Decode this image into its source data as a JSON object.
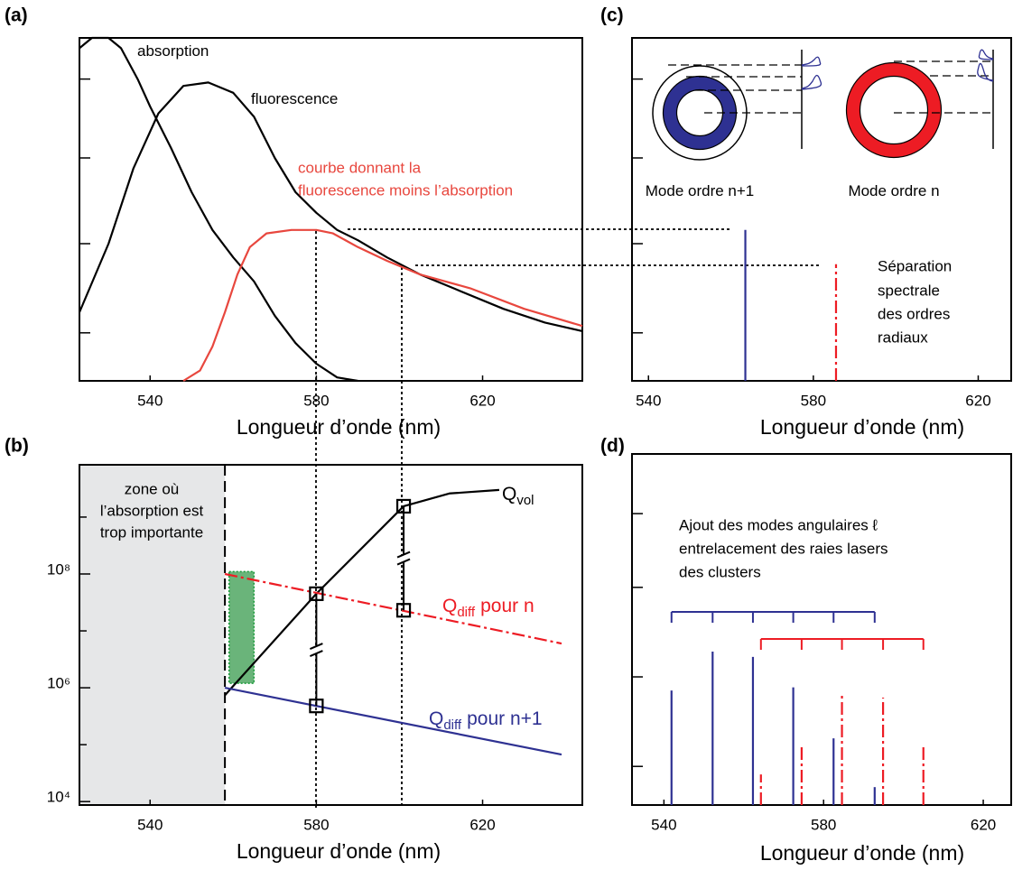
{
  "chart_data": [
    {
      "panel": "(a)",
      "type": "line",
      "xlabel": "Longueur d’onde (nm)",
      "xlim": [
        523,
        644
      ],
      "ylim": [
        0,
        1
      ],
      "xticks": [
        540,
        580,
        620
      ],
      "yticks": [
        0.14,
        0.4,
        0.65,
        0.88
      ],
      "ytick_labels": false,
      "series": [
        {
          "name": "absorption",
          "color": "#000000",
          "x": [
            523,
            526,
            530,
            533,
            537,
            540,
            545,
            550,
            555,
            560,
            565,
            570,
            575,
            580,
            585,
            590
          ],
          "values": [
            0.97,
            1.0,
            1.0,
            0.97,
            0.88,
            0.8,
            0.68,
            0.55,
            0.44,
            0.36,
            0.29,
            0.19,
            0.11,
            0.05,
            0.01,
            0
          ]
        },
        {
          "name": "fluorescence",
          "color": "#000000",
          "x": [
            523,
            530,
            536,
            542,
            548,
            554,
            560,
            565,
            570,
            575,
            580,
            585,
            590,
            597,
            605,
            613,
            625,
            635,
            644
          ],
          "values": [
            0.2,
            0.4,
            0.62,
            0.78,
            0.86,
            0.87,
            0.84,
            0.77,
            0.65,
            0.55,
            0.49,
            0.44,
            0.41,
            0.36,
            0.31,
            0.27,
            0.21,
            0.17,
            0.145
          ]
        },
        {
          "color": "#e8473e",
          "x": [
            548,
            552,
            555,
            558,
            561,
            564,
            568,
            574,
            580,
            584,
            590,
            597,
            605,
            617,
            630,
            644
          ],
          "values": [
            0,
            0.03,
            0.1,
            0.2,
            0.31,
            0.39,
            0.43,
            0.44,
            0.44,
            0.43,
            0.39,
            0.35,
            0.31,
            0.27,
            0.21,
            0.16
          ]
        }
      ],
      "annotations": [
        {
          "text": "courbe donnant la",
          "color": "#e8473e"
        },
        {
          "text": "fluorescence moins l’absorption",
          "color": "#e8473e"
        }
      ]
    },
    {
      "panel": "(b)",
      "type": "line",
      "log_y": true,
      "xlabel": "Longueur d’onde (nm)",
      "xlim": [
        523,
        644
      ],
      "ylim": [
        8700,
        8300000000
      ],
      "xticks": [
        540,
        580,
        620
      ],
      "yticks": [
        {
          "value": 10000,
          "label": "10⁴"
        },
        {
          "value": 1000000,
          "label": "10⁶"
        },
        {
          "value": 100000000,
          "label": "10⁸"
        }
      ],
      "yminor": [
        100000,
        10000000,
        1000000000
      ],
      "series": [
        {
          "name": "Q",
          "subscript": "vol",
          "color": "#000000",
          "x": [
            558,
            580,
            601,
            612,
            624
          ],
          "values": [
            740000,
            45000000,
            1550000000,
            2600000000,
            3000000000
          ]
        },
        {
          "name": "Q",
          "subscript": "diff",
          "suffix": "pour n",
          "color": "#ed1c24",
          "dash": "dashdot",
          "x": [
            558,
            639
          ],
          "values": [
            100000000,
            6000000
          ]
        },
        {
          "name": "Q",
          "subscript": "diff",
          "suffix": "pour n+1",
          "color": "#2e3192",
          "x": [
            558,
            639
          ],
          "values": [
            1000000,
            67000
          ]
        }
      ],
      "markers": {
        "x": [
          580,
          580,
          601,
          601
        ],
        "values": [
          45000000,
          480000,
          1550000000,
          23000000
        ]
      },
      "shaded_region": {
        "x": [
          523,
          558
        ],
        "color": "#e6e7e8"
      },
      "highlight": {
        "x": [
          559,
          565
        ],
        "y": [
          1200000,
          110000000
        ],
        "color": "#6ab47a"
      },
      "annotations": [
        {
          "text": "zone où"
        },
        {
          "text": "l’absorption est"
        },
        {
          "text": "trop importante"
        }
      ]
    },
    {
      "panel": "(c)",
      "type": "stem",
      "xlabel": "Longueur d’onde (nm)",
      "xlim": [
        536,
        628
      ],
      "ylim": [
        0,
        1
      ],
      "xticks": [
        540,
        580,
        620
      ],
      "yticks": [
        0.14,
        0.4,
        0.65,
        0.88
      ],
      "ytick_labels": false,
      "series": [
        {
          "name": "Mode ordre n+1",
          "color": "#2e3192",
          "x": [
            563.5
          ],
          "values": [
            0.44
          ]
        },
        {
          "name": "Mode ordre n",
          "color": "#ed1c24",
          "dash": "dashdot",
          "x": [
            585.5
          ],
          "values": [
            0.34
          ]
        }
      ],
      "annotations": [
        {
          "text": "Séparation"
        },
        {
          "text": "spectrale"
        },
        {
          "text": "des ordres"
        },
        {
          "text": "radiaux"
        }
      ]
    },
    {
      "panel": "(d)",
      "type": "stem",
      "xlabel": "Longueur d’onde (nm)",
      "brackets": true,
      "xlim": [
        532,
        627
      ],
      "ylim": [
        0,
        1
      ],
      "xticks": [
        540,
        580,
        620
      ],
      "yticks": [
        0.11,
        0.365,
        0.62,
        0.83
      ],
      "ytick_labels": false,
      "series": [
        {
          "color": "#2e3192",
          "x": [
            541.9,
            552.2,
            562.3,
            572.4,
            582.5,
            592.8
          ],
          "values": [
            0.326,
            0.437,
            0.422,
            0.335,
            0.19,
            0.051
          ]
        },
        {
          "color": "#ed1c24",
          "dash": "dashdot",
          "x": [
            564.3,
            574.5,
            584.6,
            594.9,
            605.0
          ],
          "values": [
            0.087,
            0.17,
            0.319,
            0.306,
            0.165
          ]
        }
      ],
      "annotations": [
        {
          "text": "Ajout des modes angulaires ℓ"
        },
        {
          "text": "entrelacement des raies lasers"
        },
        {
          "text": "des clusters"
        }
      ]
    }
  ]
}
